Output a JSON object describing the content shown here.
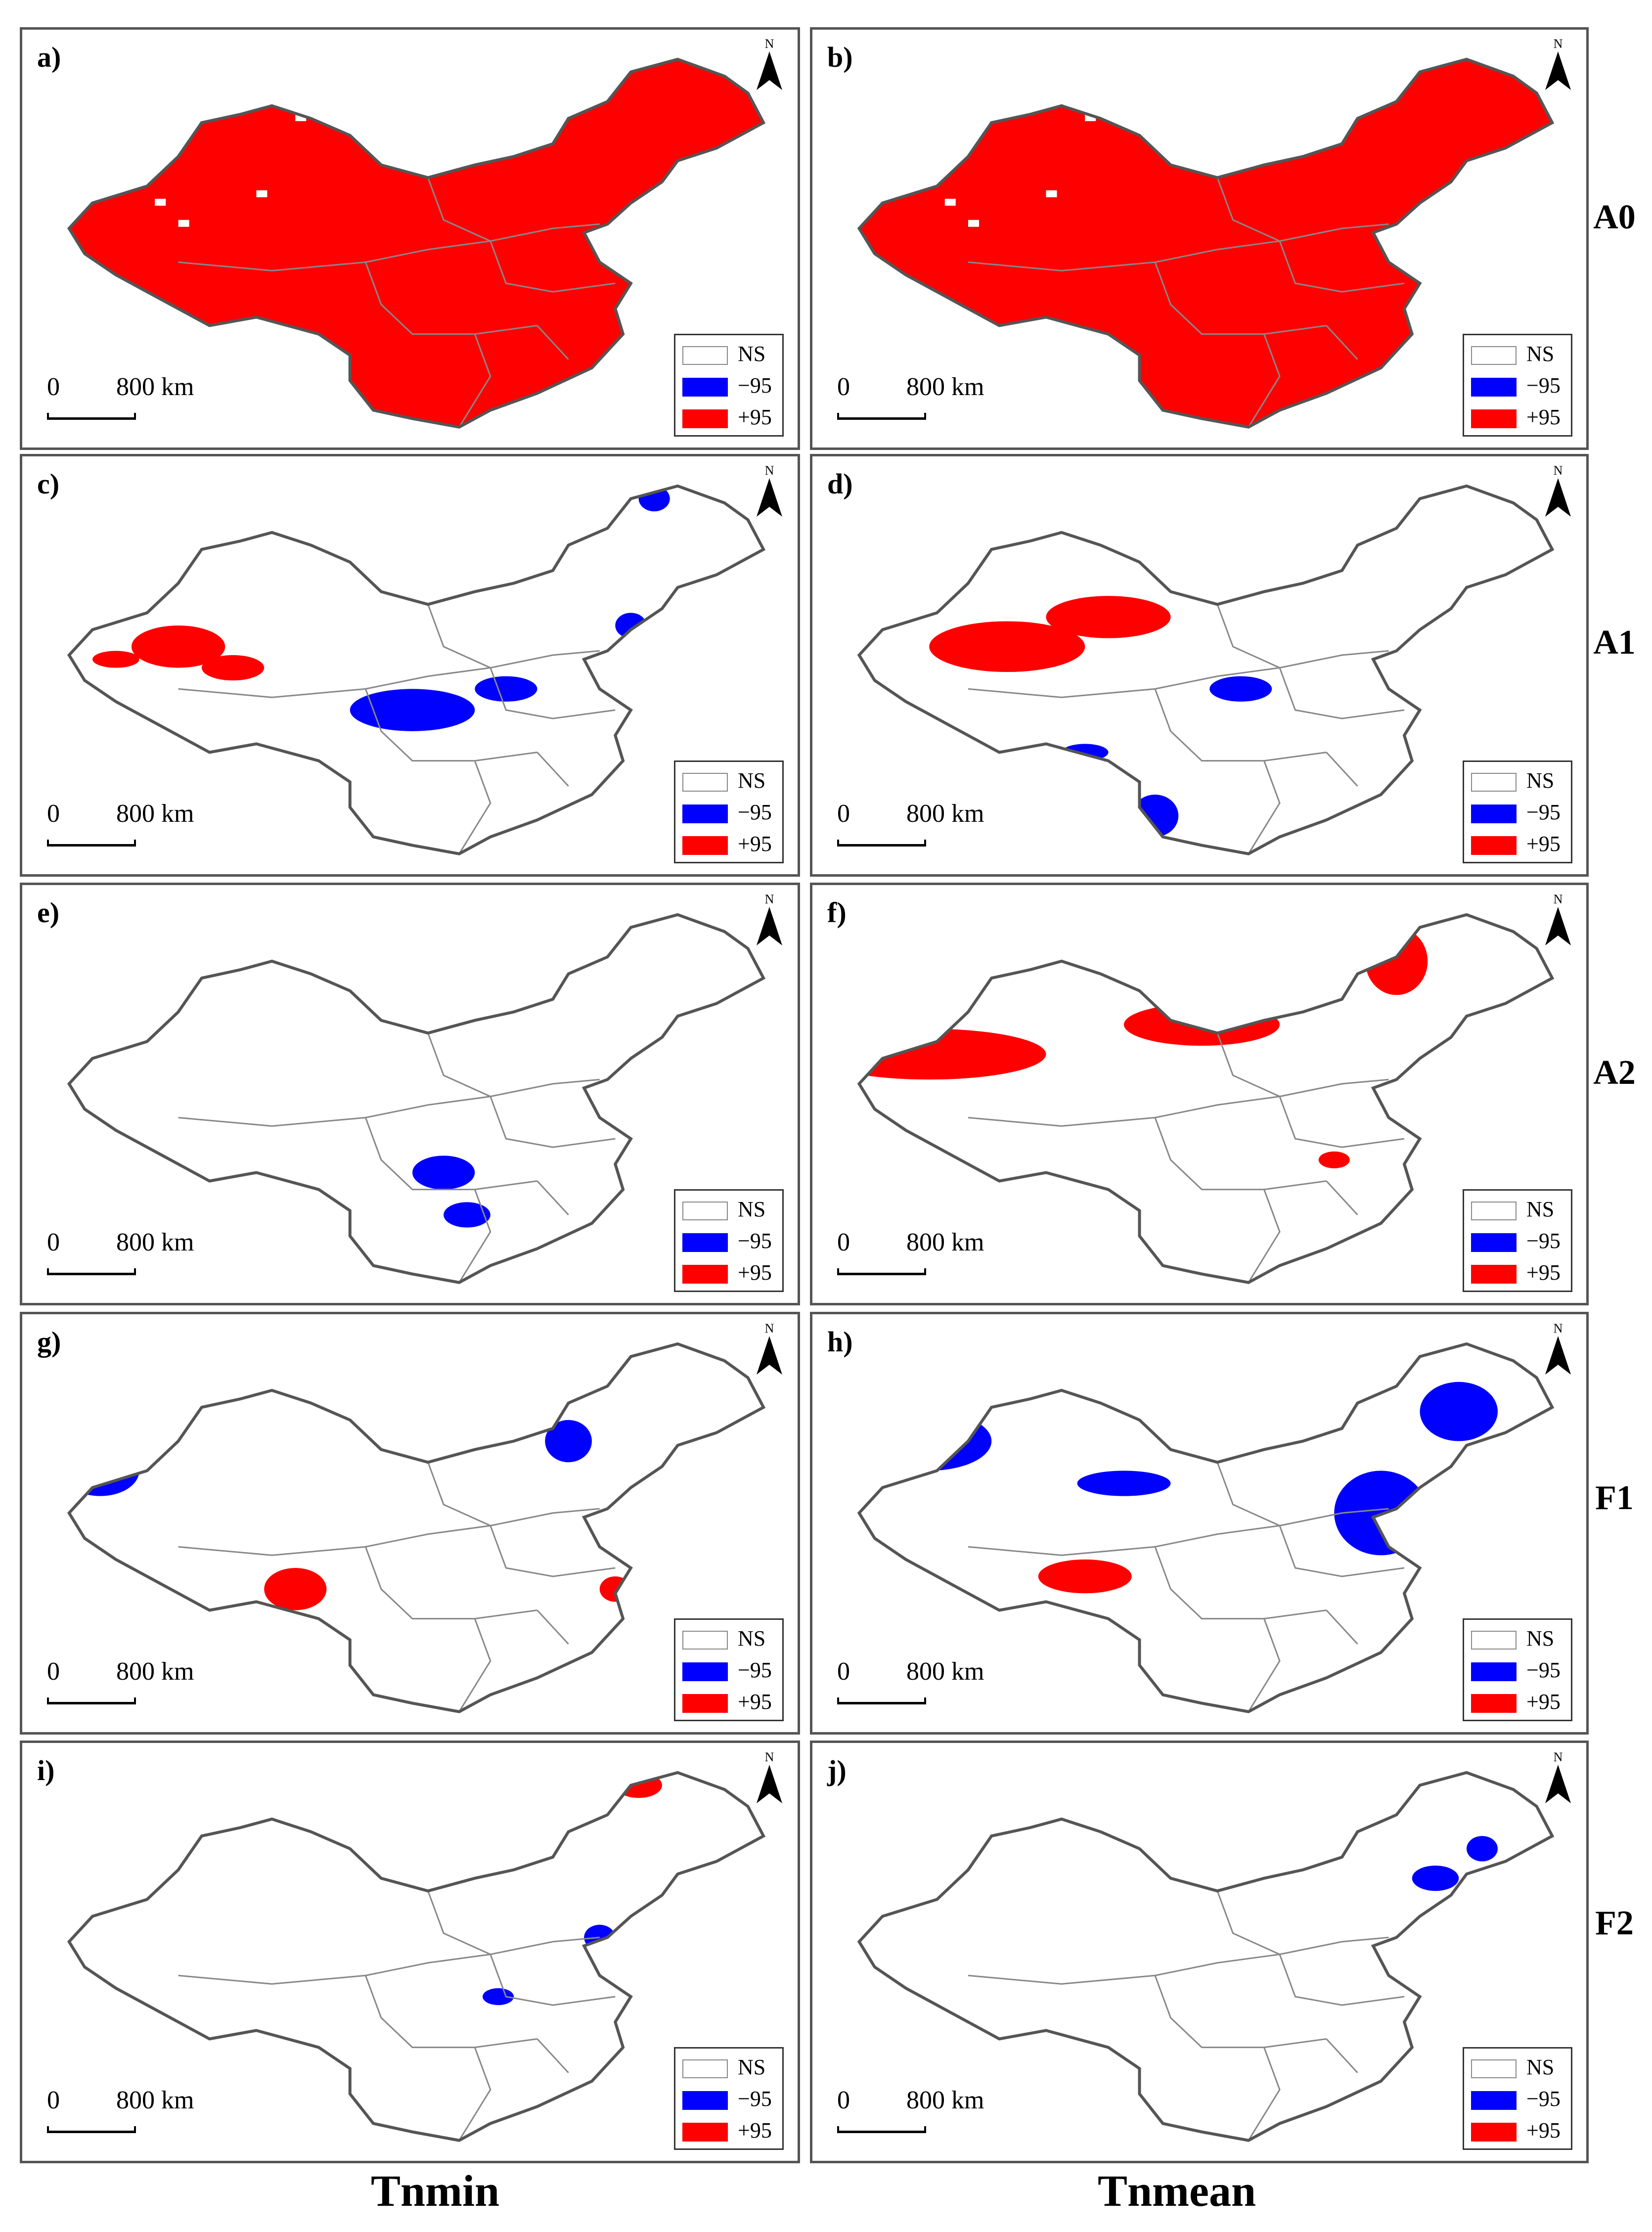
{
  "panels": [
    {
      "label": "a)",
      "variable": "Tnmin",
      "row": "A0",
      "col": 0
    },
    {
      "label": "b)",
      "variable": "Tnmean",
      "row": "A0",
      "col": 1
    },
    {
      "label": "c)",
      "variable": "Tnmin",
      "row": "A1",
      "col": 0
    },
    {
      "label": "d)",
      "variable": "Tnmean",
      "row": "A1",
      "col": 1
    },
    {
      "label": "e)",
      "variable": "Tnmin",
      "row": "A2",
      "col": 0
    },
    {
      "label": "f)",
      "variable": "Tnmean",
      "row": "A2",
      "col": 1
    },
    {
      "label": "g)",
      "variable": "Tnmin",
      "row": "F1",
      "col": 0
    },
    {
      "label": "h)",
      "variable": "Tnmean",
      "row": "F1",
      "col": 1
    },
    {
      "label": "i)",
      "variable": "Tnmin",
      "row": "F2",
      "col": 0
    },
    {
      "label": "j)",
      "variable": "Tnmean",
      "row": "F2",
      "col": 1
    }
  ],
  "row_labels": [
    "A0",
    "A1",
    "A2",
    "F1",
    "F2"
  ],
  "column_labels": [
    "Tnmin",
    "Tnmean"
  ],
  "legend": [
    {
      "label": "NS",
      "color": "#ffffff"
    },
    {
      "label": "−95",
      "color": "#0000ff"
    },
    {
      "label": "+95",
      "color": "#ff0000"
    }
  ],
  "scale_bar": {
    "zero": "0",
    "distance": "800 km"
  },
  "north_arrow": {
    "letter": "N"
  },
  "colors": {
    "increase": "#ff0000",
    "decrease": "#0000ff",
    "border": "#888888",
    "outline": "#555555"
  }
}
